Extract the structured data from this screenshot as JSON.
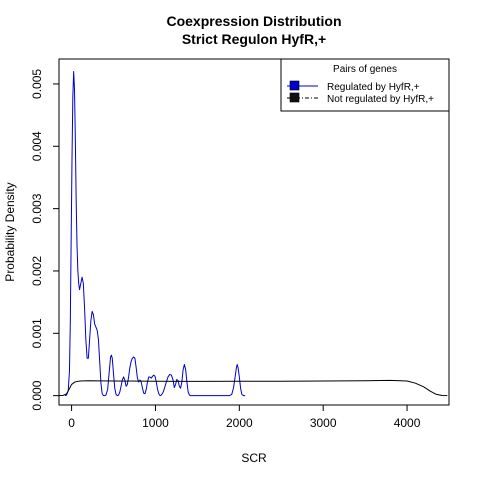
{
  "chart_data": {
    "type": "line",
    "title": "Coexpression Distribution",
    "subtitle": "Strict Regulon HyfR,+",
    "xlabel": "SCR",
    "ylabel": "Probability Density",
    "xlim": [
      -150,
      4500
    ],
    "ylim": [
      -0.00015,
      0.0054
    ],
    "x_ticks": [
      0,
      1000,
      2000,
      3000,
      4000
    ],
    "x_tick_labels": [
      "0",
      "1000",
      "2000",
      "3000",
      "4000"
    ],
    "y_ticks": [
      0.0,
      0.001,
      0.002,
      0.003,
      0.004,
      0.005
    ],
    "y_tick_labels": [
      "0.000",
      "0.001",
      "0.002",
      "0.003",
      "0.004",
      "0.005"
    ],
    "grid": false,
    "legend": {
      "title": "Pairs of genes",
      "position": "top-right",
      "entries": [
        "Regulated by  HyfR,+",
        "Not regulated by  HyfR,+"
      ]
    },
    "series": [
      {
        "name": "Regulated by  HyfR,+",
        "color": "#0000cc",
        "line_style": "solid",
        "points": [
          [
            -80,
            0.0
          ],
          [
            -60,
            1e-05
          ],
          [
            -40,
            8e-05
          ],
          [
            -25,
            0.0004
          ],
          [
            -15,
            0.0012
          ],
          [
            -5,
            0.0025
          ],
          [
            5,
            0.0038
          ],
          [
            15,
            0.0048
          ],
          [
            25,
            0.0052
          ],
          [
            35,
            0.0049
          ],
          [
            45,
            0.0041
          ],
          [
            55,
            0.0031
          ],
          [
            65,
            0.0024
          ],
          [
            75,
            0.002
          ],
          [
            85,
            0.0018
          ],
          [
            95,
            0.0017
          ],
          [
            110,
            0.0018
          ],
          [
            125,
            0.0019
          ],
          [
            140,
            0.0018
          ],
          [
            155,
            0.0014
          ],
          [
            170,
            0.0009
          ],
          [
            185,
            0.0006
          ],
          [
            200,
            0.0006
          ],
          [
            215,
            0.0009
          ],
          [
            230,
            0.0012
          ],
          [
            245,
            0.00135
          ],
          [
            260,
            0.0013
          ],
          [
            275,
            0.00115
          ],
          [
            290,
            0.0011
          ],
          [
            305,
            0.00105
          ],
          [
            320,
            0.0009
          ],
          [
            335,
            0.00055
          ],
          [
            350,
            0.0002
          ],
          [
            365,
            3e-05
          ],
          [
            380,
            0.0
          ],
          [
            395,
            0.0
          ],
          [
            410,
            1e-05
          ],
          [
            430,
            0.0001
          ],
          [
            450,
            0.0004
          ],
          [
            465,
            0.00062
          ],
          [
            475,
            0.00065
          ],
          [
            485,
            0.0006
          ],
          [
            500,
            0.00035
          ],
          [
            515,
            0.00012
          ],
          [
            530,
            2e-05
          ],
          [
            545,
            0.0
          ],
          [
            560,
            1e-05
          ],
          [
            575,
            6e-05
          ],
          [
            590,
            0.00015
          ],
          [
            605,
            0.00025
          ],
          [
            620,
            0.0003
          ],
          [
            635,
            0.00025
          ],
          [
            650,
            0.00015
          ],
          [
            665,
            0.00018
          ],
          [
            680,
            0.0003
          ],
          [
            695,
            0.00045
          ],
          [
            710,
            0.00055
          ],
          [
            725,
            0.0006
          ],
          [
            740,
            0.00062
          ],
          [
            755,
            0.0006
          ],
          [
            770,
            0.00045
          ],
          [
            785,
            0.00028
          ],
          [
            800,
            0.00022
          ],
          [
            815,
            0.00025
          ],
          [
            830,
            0.00022
          ],
          [
            845,
            0.00012
          ],
          [
            860,
            4e-05
          ],
          [
            875,
            3e-05
          ],
          [
            890,
            0.0001
          ],
          [
            905,
            0.00022
          ],
          [
            920,
            0.0003
          ],
          [
            935,
            0.0003
          ],
          [
            950,
            0.00028
          ],
          [
            965,
            0.00031
          ],
          [
            980,
            0.00033
          ],
          [
            995,
            0.00031
          ],
          [
            1010,
            0.00022
          ],
          [
            1025,
            0.0001
          ],
          [
            1040,
            3e-05
          ],
          [
            1055,
            0.0
          ],
          [
            1070,
            1e-05
          ],
          [
            1090,
            5e-05
          ],
          [
            1110,
            0.00013
          ],
          [
            1130,
            0.00022
          ],
          [
            1150,
            0.0003
          ],
          [
            1170,
            0.00034
          ],
          [
            1190,
            0.00033
          ],
          [
            1210,
            0.00025
          ],
          [
            1225,
            0.00013
          ],
          [
            1240,
            0.00018
          ],
          [
            1255,
            0.00026
          ],
          [
            1270,
            0.00024
          ],
          [
            1285,
            0.00015
          ],
          [
            1300,
            0.00012
          ],
          [
            1315,
            0.00022
          ],
          [
            1330,
            0.00042
          ],
          [
            1345,
            0.0005
          ],
          [
            1360,
            0.00042
          ],
          [
            1375,
            0.00022
          ],
          [
            1390,
            6e-05
          ],
          [
            1405,
            1e-05
          ],
          [
            1420,
            0.0
          ],
          [
            1500,
            0.0
          ],
          [
            1600,
            0.0
          ],
          [
            1700,
            0.0
          ],
          [
            1800,
            0.0
          ],
          [
            1880,
            0.0
          ],
          [
            1910,
            2e-05
          ],
          [
            1930,
            0.00012
          ],
          [
            1950,
            0.0003
          ],
          [
            1965,
            0.00045
          ],
          [
            1975,
            0.0005
          ],
          [
            1985,
            0.00045
          ],
          [
            2000,
            0.0003
          ],
          [
            2015,
            0.00012
          ],
          [
            2030,
            2e-05
          ],
          [
            2050,
            0.0
          ],
          [
            2070,
            0.0
          ]
        ]
      },
      {
        "name": "Not regulated by  HyfR,+",
        "color": "#000000",
        "line_style": "solid",
        "points": [
          [
            -150,
            0.0
          ],
          [
            -100,
            5e-06
          ],
          [
            -60,
            3e-05
          ],
          [
            -30,
            0.0001
          ],
          [
            0,
            0.00018
          ],
          [
            40,
            0.00022
          ],
          [
            100,
            0.000235
          ],
          [
            200,
            0.00024
          ],
          [
            500,
            0.000235
          ],
          [
            1000,
            0.000232
          ],
          [
            1500,
            0.000228
          ],
          [
            2000,
            0.00023
          ],
          [
            2500,
            0.000232
          ],
          [
            3000,
            0.000235
          ],
          [
            3500,
            0.00024
          ],
          [
            3800,
            0.000245
          ],
          [
            4000,
            0.000235
          ],
          [
            4100,
            0.0002
          ],
          [
            4200,
            0.00014
          ],
          [
            4280,
            7e-05
          ],
          [
            4350,
            2e-05
          ],
          [
            4420,
            3e-06
          ],
          [
            4480,
            0.0
          ]
        ]
      }
    ]
  }
}
